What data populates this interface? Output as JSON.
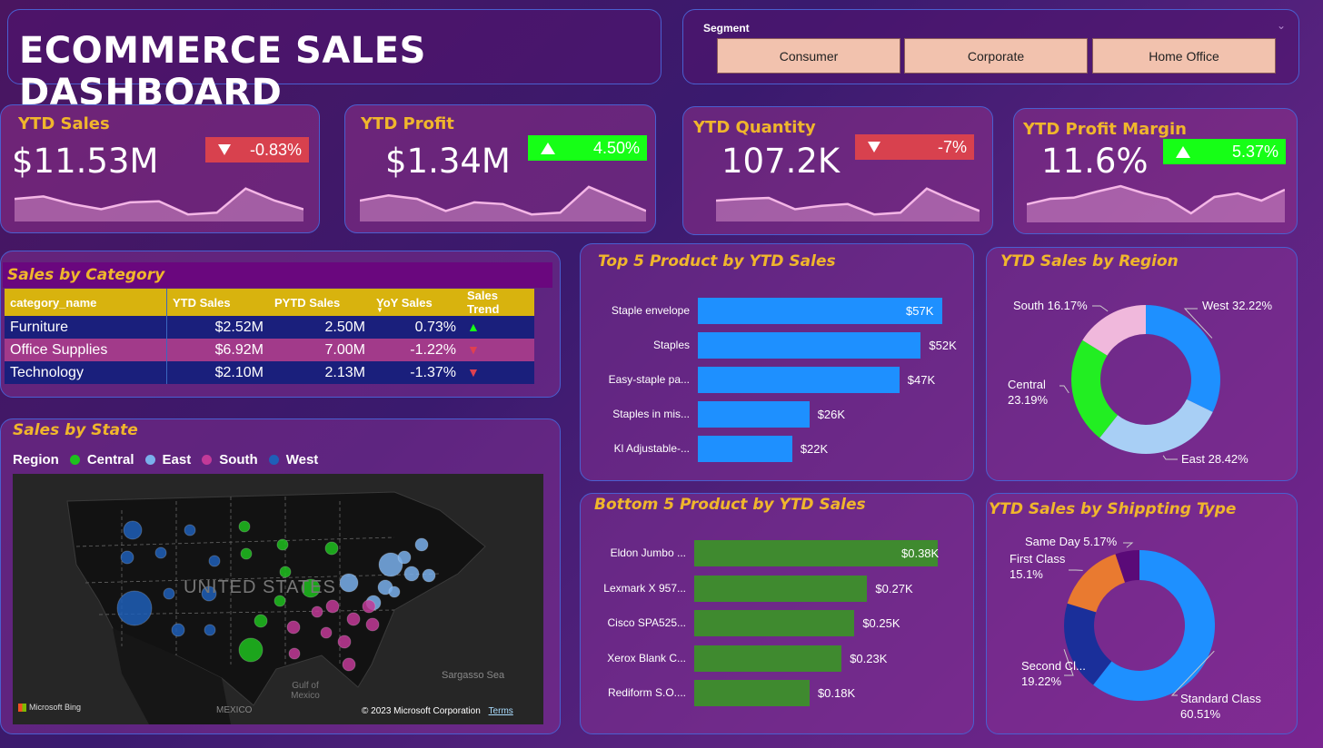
{
  "header": {
    "title": "ECOMMERCE SALES DASHBOARD"
  },
  "segment": {
    "label": "Segment",
    "options": [
      "Consumer",
      "Corporate",
      "Home Office"
    ]
  },
  "kpis": [
    {
      "title": "YTD Sales",
      "value": "$11.53M",
      "change": "-0.83%",
      "direction": "down",
      "trend": [
        0.55,
        0.62,
        0.4,
        0.25,
        0.45,
        0.48,
        0.1,
        0.15,
        0.85,
        0.5,
        0.25
      ]
    },
    {
      "title": "YTD Profit",
      "value": "$1.34M",
      "change": "4.50%",
      "direction": "up",
      "trend": [
        0.5,
        0.65,
        0.55,
        0.2,
        0.45,
        0.4,
        0.1,
        0.15,
        0.9,
        0.55,
        0.2
      ]
    },
    {
      "title": "YTD Quantity",
      "value": "107.2K",
      "change": "-7%",
      "direction": "down",
      "trend": [
        0.5,
        0.55,
        0.58,
        0.25,
        0.35,
        0.4,
        0.1,
        0.15,
        0.85,
        0.5,
        0.2
      ]
    },
    {
      "title": "YTD Profit Margin",
      "value": "11.6%",
      "change": "5.37%",
      "direction": "up",
      "trend": [
        0.4,
        0.55,
        0.58,
        0.75,
        0.9,
        0.7,
        0.55,
        0.15,
        0.6,
        0.7,
        0.5,
        0.8
      ]
    }
  ],
  "category_table": {
    "title": "Sales by Category",
    "headers": [
      "category_name",
      "YTD Sales",
      "PYTD Sales",
      "YoY Sales",
      "Sales Trend"
    ],
    "rows": [
      {
        "name": "Furniture",
        "ytd": "$2.52M",
        "pytd": "2.50M",
        "yoy": "0.73%",
        "trend": "up"
      },
      {
        "name": "Office Supplies",
        "ytd": "$6.92M",
        "pytd": "7.00M",
        "yoy": "-1.22%",
        "trend": "down"
      },
      {
        "name": "Technology",
        "ytd": "$2.10M",
        "pytd": "2.13M",
        "yoy": "-1.37%",
        "trend": "down"
      }
    ]
  },
  "state_map": {
    "title": "Sales by State",
    "legend_title": "Region",
    "regions": [
      {
        "name": "Central",
        "color": "#1ec01e"
      },
      {
        "name": "East",
        "color": "#7ab0ec"
      },
      {
        "name": "South",
        "color": "#c23a98"
      },
      {
        "name": "West",
        "color": "#1f5fb8"
      }
    ],
    "labels": {
      "country": "UNITED STATES",
      "gulf": "Gulf of Mexico",
      "sea": "Sargasso Sea",
      "mexico": "MEXICO",
      "bing": "Microsoft Bing",
      "copyright": "© 2023 Microsoft Corporation",
      "terms": "Terms"
    }
  },
  "colors": {
    "accent_title": "#f0b62c",
    "top_bar": "#1e90ff",
    "bottom_bar": "#3f8a2f",
    "positive": "#16ff16",
    "negative": "#d8414e"
  },
  "chart_data": [
    {
      "type": "bar",
      "title": "Top 5 Product by YTD Sales",
      "categories": [
        "Staple envelope",
        "Staples",
        "Easy-staple pa...",
        "Staples in mis...",
        "Kl Adjustable-..."
      ],
      "values": [
        57,
        52,
        47,
        26,
        22
      ],
      "value_labels": [
        "$57K",
        "$52K",
        "$47K",
        "$26K",
        "$22K"
      ],
      "unit": "K"
    },
    {
      "type": "bar",
      "title": "Bottom 5 Product by YTD Sales",
      "categories": [
        "Eldon Jumbo ...",
        "Lexmark X 957...",
        "Cisco SPA525...",
        "Xerox Blank C...",
        "Rediform S.O...."
      ],
      "values": [
        0.38,
        0.27,
        0.25,
        0.23,
        0.18
      ],
      "value_labels": [
        "$0.38K",
        "$0.27K",
        "$0.25K",
        "$0.23K",
        "$0.18K"
      ],
      "unit": "K"
    },
    {
      "type": "pie",
      "title": "YTD Sales by Region",
      "series": [
        {
          "name": "West",
          "value": 32.22,
          "label": "West 32.22%",
          "color": "#1e90ff"
        },
        {
          "name": "East",
          "value": 28.42,
          "label": "East 28.42%",
          "color": "#a8cff5"
        },
        {
          "name": "Central",
          "value": 23.19,
          "label": "Central 23.19%",
          "color": "#22ee22"
        },
        {
          "name": "South",
          "value": 16.17,
          "label": "South 16.17%",
          "color": "#f0b8dc"
        }
      ]
    },
    {
      "type": "pie",
      "title": "YTD Sales by Shippting Type",
      "series": [
        {
          "name": "Standard Class",
          "value": 60.51,
          "label": "Standard Class 60.51%",
          "color": "#1e90ff"
        },
        {
          "name": "Second Cl...",
          "value": 19.22,
          "label": "Second Cl... 19.22%",
          "color": "#1a2f9a"
        },
        {
          "name": "First Class",
          "value": 15.1,
          "label": "First Class 15.1%",
          "color": "#e97a30"
        },
        {
          "name": "Same Day",
          "value": 5.17,
          "label": "Same Day 5.17%",
          "color": "#5a0a78"
        }
      ]
    }
  ]
}
